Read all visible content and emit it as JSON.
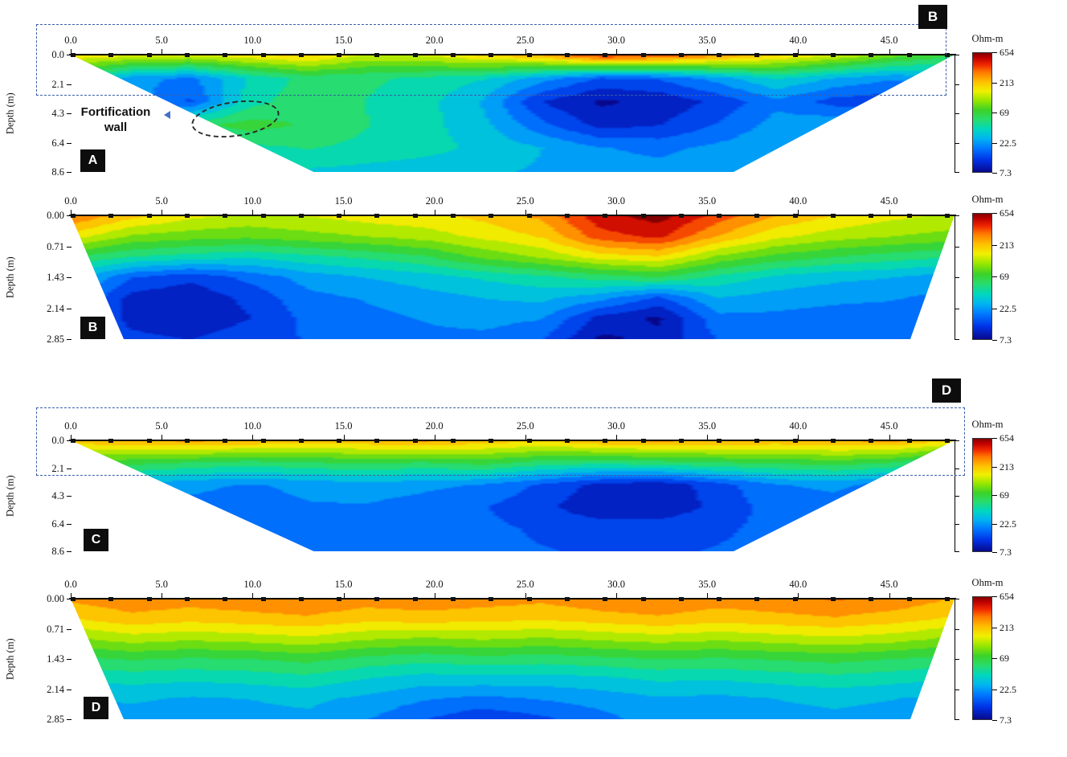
{
  "colorbar": {
    "title": "Ohm-m",
    "ticks": [
      "654",
      "213",
      "69",
      "22.5",
      "7.3"
    ]
  },
  "scale": {
    "min": 7.3,
    "max": 654,
    "type": "log"
  },
  "colors": {
    "extent_box": "#3a5da8",
    "feature_arrow": "#4472c4",
    "badge_bg": "#0d0d0d",
    "badge_text": "#ffffff",
    "axis": "#000000"
  },
  "colormap_stops": [
    [
      0.0,
      8,
      8,
      140
    ],
    [
      0.1,
      0,
      50,
      230
    ],
    [
      0.2,
      0,
      120,
      255
    ],
    [
      0.28,
      0,
      180,
      240
    ],
    [
      0.36,
      0,
      215,
      190
    ],
    [
      0.44,
      40,
      220,
      110
    ],
    [
      0.52,
      60,
      210,
      40
    ],
    [
      0.6,
      150,
      230,
      0
    ],
    [
      0.68,
      240,
      240,
      0
    ],
    [
      0.76,
      255,
      190,
      0
    ],
    [
      0.84,
      255,
      120,
      0
    ],
    [
      0.9,
      240,
      40,
      0
    ],
    [
      0.96,
      190,
      0,
      0
    ],
    [
      1.0,
      130,
      0,
      0
    ]
  ],
  "chart_data": [
    {
      "type": "heatmap",
      "panel_label": "A",
      "ylabel": "Depth (m)",
      "unit": "Ohm-m",
      "x_tick_labels": [
        "0.0",
        "5.0",
        "10.0",
        "15.0",
        "20.0",
        "25.0",
        "30.0",
        "35.0",
        "40.0",
        "45.0"
      ],
      "x_max": 48.6,
      "depth_tick_labels": [
        "0.0",
        "2.1",
        "4.3",
        "6.4",
        "8.6"
      ],
      "depth_range": [
        0,
        8.6
      ],
      "electrodes": 24,
      "coverage": {
        "bottom_left_pct": 27.5,
        "bottom_right_pct": 75
      },
      "overlay_box_label": "B",
      "feature_label_lines": [
        "Fortification",
        "wall"
      ],
      "x_centers": [
        1.5,
        4.5,
        7.5,
        10.5,
        13.5,
        16.5,
        19.5,
        22.5,
        25.5,
        28.5,
        31.5,
        34.5,
        37.5,
        40.5,
        43.5,
        46.5
      ],
      "depths_m": [
        0.3,
        1.5,
        2.8,
        4.3,
        6.0,
        8.0
      ],
      "values_ohm_m": [
        [
          180,
          150,
          140,
          170,
          200,
          130,
          140,
          190,
          240,
          420,
          380,
          280,
          190,
          140,
          90,
          60
        ],
        [
          45,
          22,
          18,
          35,
          50,
          48,
          42,
          35,
          22,
          14,
          15,
          22,
          35,
          25,
          20,
          25
        ],
        [
          35,
          22,
          14,
          40,
          55,
          45,
          38,
          25,
          11,
          8,
          9,
          12,
          18,
          13,
          12,
          22
        ],
        [
          26,
          28,
          55,
          68,
          58,
          46,
          38,
          28,
          16,
          10,
          11,
          15,
          22,
          25,
          26,
          24
        ],
        [
          24,
          26,
          32,
          42,
          46,
          42,
          38,
          32,
          26,
          20,
          18,
          21,
          25,
          27,
          28,
          26
        ],
        [
          22,
          24,
          27,
          30,
          33,
          31,
          29,
          27,
          25,
          22,
          22,
          24,
          26,
          26,
          27,
          27
        ]
      ]
    },
    {
      "type": "heatmap",
      "panel_label": "B",
      "ylabel": "Depth (m)",
      "unit": "Ohm-m",
      "x_tick_labels": [
        "0.0",
        "5.0",
        "10.0",
        "15.0",
        "20.0",
        "25.0",
        "30.0",
        "35.0",
        "40.0",
        "45.0"
      ],
      "x_max": 48.6,
      "depth_tick_labels": [
        "0.00",
        "0.71",
        "1.43",
        "2.14",
        "2.85"
      ],
      "depth_range": [
        0,
        2.85
      ],
      "electrodes": 24,
      "coverage": {
        "bottom_left_pct": 6,
        "bottom_right_pct": 95
      },
      "x_centers": [
        1.5,
        4.5,
        7.5,
        10.5,
        13.5,
        16.5,
        19.5,
        22.5,
        25.5,
        28.5,
        31.5,
        34.5,
        37.5,
        40.5,
        43.5,
        46.5
      ],
      "depths_m": [
        0.15,
        0.5,
        0.9,
        1.35,
        1.8,
        2.3,
        2.75
      ],
      "values_ohm_m": [
        [
          320,
          200,
          150,
          130,
          140,
          160,
          170,
          200,
          260,
          520,
          640,
          380,
          240,
          180,
          150,
          130
        ],
        [
          160,
          100,
          90,
          85,
          95,
          105,
          120,
          150,
          190,
          380,
          460,
          240,
          150,
          120,
          105,
          95
        ],
        [
          60,
          45,
          40,
          36,
          42,
          48,
          58,
          85,
          110,
          160,
          180,
          100,
          72,
          60,
          52,
          46
        ],
        [
          30,
          15,
          12,
          16,
          22,
          26,
          30,
          36,
          42,
          52,
          60,
          42,
          32,
          28,
          26,
          22
        ],
        [
          22,
          10,
          9,
          12,
          18,
          20,
          23,
          26,
          28,
          22,
          14,
          26,
          23,
          21,
          20,
          18
        ],
        [
          18,
          10,
          9,
          11,
          16,
          18,
          20,
          22,
          20,
          10,
          8,
          18,
          18,
          17,
          17,
          16
        ],
        [
          16,
          12,
          11,
          13,
          15,
          16,
          18,
          18,
          15,
          8,
          9,
          15,
          16,
          15,
          15,
          15
        ]
      ]
    },
    {
      "type": "heatmap",
      "panel_label": "C",
      "ylabel": "Depth (m)",
      "unit": "Ohm-m",
      "x_tick_labels": [
        "0.0",
        "5.0",
        "10.0",
        "15.0",
        "20.0",
        "25.0",
        "30.0",
        "35.0",
        "40.0",
        "45.0"
      ],
      "x_max": 48.6,
      "depth_tick_labels": [
        "0.0",
        "2.1",
        "4.3",
        "6.4",
        "8.6"
      ],
      "depth_range": [
        0,
        8.6
      ],
      "electrodes": 24,
      "coverage": {
        "bottom_left_pct": 27.5,
        "bottom_right_pct": 75
      },
      "overlay_box_label": "D",
      "x_centers": [
        1.5,
        4.5,
        7.5,
        10.5,
        13.5,
        16.5,
        19.5,
        22.5,
        25.5,
        28.5,
        31.5,
        34.5,
        37.5,
        40.5,
        43.5,
        46.5
      ],
      "depths_m": [
        0.3,
        1.5,
        2.8,
        4.3,
        6.0,
        8.0
      ],
      "values_ohm_m": [
        [
          210,
          230,
          250,
          230,
          210,
          220,
          250,
          210,
          190,
          230,
          250,
          230,
          220,
          240,
          250,
          180
        ],
        [
          70,
          65,
          58,
          52,
          58,
          62,
          58,
          66,
          52,
          48,
          52,
          58,
          62,
          68,
          58,
          38
        ],
        [
          28,
          24,
          21,
          19,
          21,
          23,
          21,
          19,
          14,
          10,
          9,
          13,
          19,
          21,
          17,
          12
        ],
        [
          21,
          19,
          18,
          17,
          19,
          19,
          17,
          15,
          12,
          9,
          9,
          12,
          17,
          17,
          15,
          13
        ],
        [
          19,
          18,
          17,
          17,
          18,
          18,
          17,
          16,
          14,
          13,
          13,
          14,
          16,
          16,
          15,
          14
        ],
        [
          18,
          17,
          17,
          17,
          17,
          17,
          17,
          16,
          15,
          14,
          14,
          15,
          16,
          16,
          15,
          15
        ]
      ]
    },
    {
      "type": "heatmap",
      "panel_label": "D",
      "ylabel": "Depth (m)",
      "unit": "Ohm-m",
      "x_tick_labels": [
        "0.0",
        "5.0",
        "10.0",
        "15.0",
        "20.0",
        "25.0",
        "30.0",
        "35.0",
        "40.0",
        "45.0"
      ],
      "x_max": 48.6,
      "depth_tick_labels": [
        "0.00",
        "0.71",
        "1.43",
        "2.14",
        "2.85"
      ],
      "depth_range": [
        0,
        2.85
      ],
      "electrodes": 24,
      "coverage": {
        "bottom_left_pct": 6,
        "bottom_right_pct": 95
      },
      "x_centers": [
        1.5,
        4.5,
        7.5,
        10.5,
        13.5,
        16.5,
        19.5,
        22.5,
        25.5,
        28.5,
        31.5,
        34.5,
        37.5,
        40.5,
        43.5,
        46.5
      ],
      "depths_m": [
        0.15,
        0.5,
        0.9,
        1.35,
        1.8,
        2.3,
        2.75
      ],
      "values_ohm_m": [
        [
          260,
          300,
          280,
          300,
          320,
          280,
          300,
          280,
          260,
          300,
          320,
          280,
          300,
          330,
          300,
          240
        ],
        [
          180,
          220,
          200,
          215,
          230,
          200,
          210,
          200,
          190,
          210,
          230,
          205,
          220,
          235,
          210,
          175
        ],
        [
          100,
          120,
          110,
          118,
          128,
          108,
          100,
          108,
          100,
          110,
          120,
          110,
          120,
          130,
          118,
          98
        ],
        [
          55,
          62,
          58,
          60,
          66,
          55,
          50,
          54,
          52,
          56,
          60,
          58,
          62,
          66,
          60,
          54
        ],
        [
          35,
          38,
          36,
          38,
          41,
          34,
          30,
          31,
          30,
          32,
          36,
          35,
          38,
          41,
          38,
          34
        ],
        [
          25,
          27,
          25,
          26,
          28,
          24,
          20,
          18,
          20,
          22,
          25,
          24,
          26,
          28,
          26,
          24
        ],
        [
          22,
          23,
          22,
          23,
          24,
          20,
          15,
          12,
          14,
          18,
          22,
          21,
          23,
          24,
          23,
          22
        ]
      ]
    }
  ]
}
